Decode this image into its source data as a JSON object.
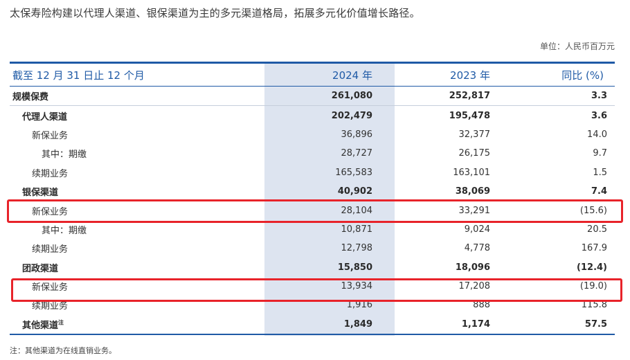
{
  "intro": "太保寿险构建以代理人渠道、银保渠道为主的多元渠道格局，拓展多元化价值增长路径。",
  "unit": "单位：人民币百万元",
  "table": {
    "headers": [
      "截至 12 月 31 日止 12 个月",
      "2024 年",
      "2023 年",
      "同比 (%)"
    ],
    "rows": [
      {
        "label": "规模保费",
        "v2024": "261,080",
        "v2023": "252,817",
        "yoy": "3.3"
      },
      {
        "label": "代理人渠道",
        "v2024": "202,479",
        "v2023": "195,478",
        "yoy": "3.6"
      },
      {
        "label": "新保业务",
        "v2024": "36,896",
        "v2023": "32,377",
        "yoy": "14.0"
      },
      {
        "label": "其中：期缴",
        "v2024": "28,727",
        "v2023": "26,175",
        "yoy": "9.7"
      },
      {
        "label": "续期业务",
        "v2024": "165,583",
        "v2023": "163,101",
        "yoy": "1.5"
      },
      {
        "label": "银保渠道",
        "v2024": "40,902",
        "v2023": "38,069",
        "yoy": "7.4"
      },
      {
        "label": "新保业务",
        "v2024": "28,104",
        "v2023": "33,291",
        "yoy": "(15.6)"
      },
      {
        "label": "其中：期缴",
        "v2024": "10,871",
        "v2023": "9,024",
        "yoy": "20.5"
      },
      {
        "label": "续期业务",
        "v2024": "12,798",
        "v2023": "4,778",
        "yoy": "167.9"
      },
      {
        "label": "团政渠道",
        "v2024": "15,850",
        "v2023": "18,096",
        "yoy": "(12.4)"
      },
      {
        "label": "新保业务",
        "v2024": "13,934",
        "v2023": "17,208",
        "yoy": "(19.0)"
      },
      {
        "label": "续期业务",
        "v2024": "1,916",
        "v2023": "888",
        "yoy": "115.8"
      },
      {
        "label": "其他渠道",
        "label_sup": "注",
        "v2024": "1,849",
        "v2023": "1,174",
        "yoy": "57.5"
      }
    ]
  },
  "note": "注：其他渠道为在线直销业务。",
  "colors": {
    "accent_blue": "#1f5aa6",
    "highlight_column": "#dde4f0",
    "annotation_red": "#e8232a"
  }
}
